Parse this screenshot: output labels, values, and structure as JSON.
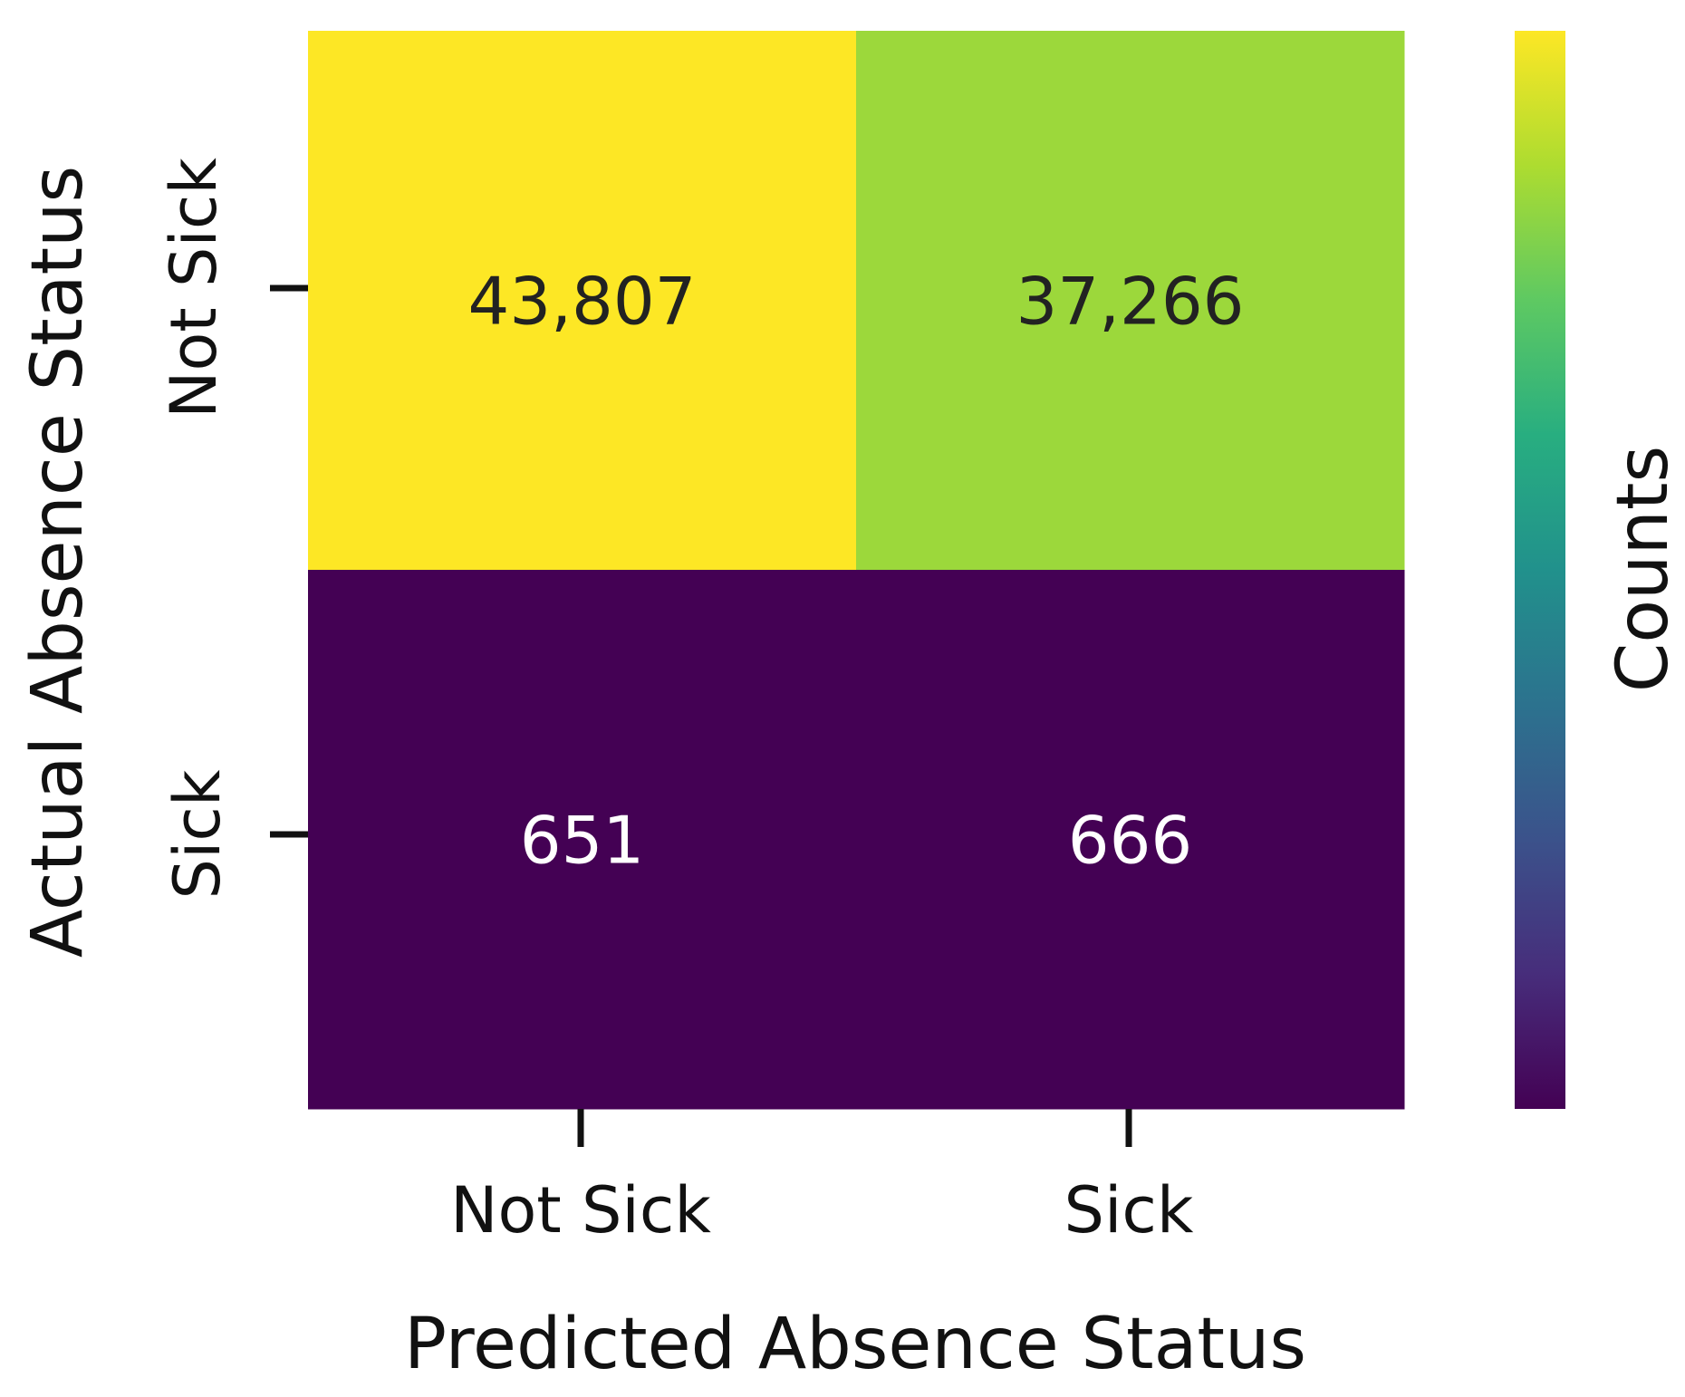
{
  "chart_data": {
    "type": "heatmap",
    "title": "",
    "xlabel": "Predicted Absence Status",
    "ylabel": "Actual Absence Status",
    "x_categories": [
      "Not Sick",
      "Sick"
    ],
    "y_categories": [
      "Not Sick",
      "Sick"
    ],
    "values": [
      [
        43807,
        37266
      ],
      [
        651,
        666
      ]
    ],
    "cell_labels": [
      [
        "43,807",
        "37,266"
      ],
      [
        "651",
        "666"
      ]
    ],
    "colorbar": {
      "label": "Counts",
      "range": [
        651,
        43807
      ],
      "colormap": "viridis",
      "ticks_shown": false
    },
    "colors": {
      "high": "#fde725",
      "low": "#440154",
      "text_on_light": "#222222",
      "text_on_dark": "#ffffff"
    }
  }
}
